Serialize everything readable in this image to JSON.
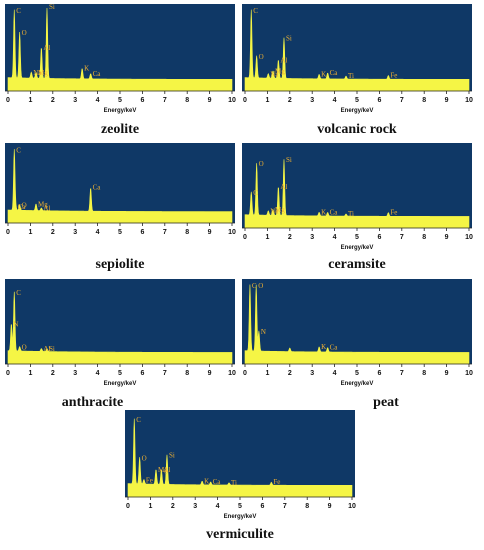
{
  "colors": {
    "background": "#0f3866",
    "spectrum": "#f5f545",
    "label": "#f0b030",
    "axis": "#222222"
  },
  "chart_data": [
    {
      "type": "line",
      "title": "zeolite",
      "xlabel": "Energy/keV",
      "xlim": [
        0,
        10
      ],
      "xticks": [
        "0",
        "1",
        "2",
        "3",
        "4",
        "5",
        "6",
        "7",
        "8",
        "9",
        "10"
      ],
      "peaks": [
        {
          "label": "C",
          "x": 0.28,
          "y": 0.92
        },
        {
          "label": "O",
          "x": 0.52,
          "y": 0.62
        },
        {
          "label": "Na",
          "x": 1.04,
          "y": 0.08
        },
        {
          "label": "Mg",
          "x": 1.25,
          "y": 0.08
        },
        {
          "label": "Al",
          "x": 1.49,
          "y": 0.42
        },
        {
          "label": "Si",
          "x": 1.74,
          "y": 0.97
        },
        {
          "label": "K",
          "x": 3.31,
          "y": 0.14
        },
        {
          "label": "Ca",
          "x": 3.69,
          "y": 0.07
        }
      ]
    },
    {
      "type": "line",
      "title": "volcanic rock",
      "xlabel": "Energy/keV",
      "xlim": [
        0,
        10
      ],
      "xticks": [
        "0",
        "1",
        "2",
        "3",
        "4",
        "5",
        "6",
        "7",
        "8",
        "9",
        "10"
      ],
      "peaks": [
        {
          "label": "C",
          "x": 0.28,
          "y": 0.92
        },
        {
          "label": "O",
          "x": 0.52,
          "y": 0.3
        },
        {
          "label": "Na",
          "x": 1.04,
          "y": 0.06
        },
        {
          "label": "Mg",
          "x": 1.25,
          "y": 0.1
        },
        {
          "label": "Al",
          "x": 1.49,
          "y": 0.25
        },
        {
          "label": "Si",
          "x": 1.74,
          "y": 0.55
        },
        {
          "label": "K",
          "x": 3.31,
          "y": 0.06
        },
        {
          "label": "Ca",
          "x": 3.69,
          "y": 0.08
        },
        {
          "label": "Ti",
          "x": 4.51,
          "y": 0.04
        },
        {
          "label": "Fe",
          "x": 6.4,
          "y": 0.05
        }
      ]
    },
    {
      "type": "line",
      "title": "sepiolite",
      "xlabel": "",
      "xlim": [
        0,
        10
      ],
      "xticks": [
        "0",
        "1",
        "2",
        "3",
        "4",
        "5",
        "6",
        "7",
        "8",
        "9",
        "10"
      ],
      "peaks": [
        {
          "label": "C",
          "x": 0.28,
          "y": 0.9
        },
        {
          "label": "Ca",
          "x": 0.34,
          "y": 0.06
        },
        {
          "label": "O",
          "x": 0.52,
          "y": 0.08
        },
        {
          "label": "Mg",
          "x": 1.25,
          "y": 0.1
        },
        {
          "label": "Al",
          "x": 1.49,
          "y": 0.04
        },
        {
          "label": "Ca",
          "x": 3.69,
          "y": 0.35
        }
      ]
    },
    {
      "type": "line",
      "title": "ceramsite",
      "xlabel": "Energy/keV",
      "xlim": [
        0,
        10
      ],
      "xticks": [
        "0",
        "1",
        "2",
        "3",
        "4",
        "5",
        "6",
        "7",
        "8",
        "9",
        "10"
      ],
      "peaks": [
        {
          "label": "C",
          "x": 0.28,
          "y": 0.32
        },
        {
          "label": "O",
          "x": 0.52,
          "y": 0.72
        },
        {
          "label": "Na",
          "x": 1.04,
          "y": 0.06
        },
        {
          "label": "Mg",
          "x": 1.25,
          "y": 0.08
        },
        {
          "label": "Al",
          "x": 1.49,
          "y": 0.4
        },
        {
          "label": "Si",
          "x": 1.74,
          "y": 0.78
        },
        {
          "label": "K",
          "x": 3.31,
          "y": 0.05
        },
        {
          "label": "Ca",
          "x": 3.69,
          "y": 0.05
        },
        {
          "label": "Ti",
          "x": 4.51,
          "y": 0.03
        },
        {
          "label": "Fe",
          "x": 6.4,
          "y": 0.05
        }
      ]
    },
    {
      "type": "line",
      "title": "anthracite",
      "xlabel": "Energy/keV",
      "xlim": [
        0,
        10
      ],
      "xticks": [
        "0",
        "1",
        "2",
        "3",
        "4",
        "5",
        "6",
        "7",
        "8",
        "9",
        "10"
      ],
      "peaks": [
        {
          "label": "N",
          "x": 0.15,
          "y": 0.38
        },
        {
          "label": "C",
          "x": 0.28,
          "y": 0.82
        },
        {
          "label": "O",
          "x": 0.52,
          "y": 0.06
        },
        {
          "label": "Al",
          "x": 1.49,
          "y": 0.04
        },
        {
          "label": "Si",
          "x": 1.74,
          "y": 0.04
        }
      ]
    },
    {
      "type": "line",
      "title": "peat",
      "xlabel": "Energy/keV",
      "xlim": [
        0,
        10
      ],
      "xticks": [
        "0",
        "1",
        "2",
        "3",
        "4",
        "5",
        "6",
        "7",
        "8",
        "9",
        "10"
      ],
      "peaks": [
        {
          "label": "C",
          "x": 0.22,
          "y": 0.92
        },
        {
          "label": "O",
          "x": 0.5,
          "y": 0.92
        },
        {
          "label": "N",
          "x": 0.62,
          "y": 0.28
        },
        {
          "label": "",
          "x": 2.0,
          "y": 0.05
        },
        {
          "label": "K",
          "x": 3.31,
          "y": 0.07
        },
        {
          "label": "Ca",
          "x": 3.69,
          "y": 0.06
        }
      ]
    },
    {
      "type": "line",
      "title": "vermiculite",
      "xlabel": "Energy/keV",
      "xlim": [
        0,
        10
      ],
      "xticks": [
        "0",
        "1",
        "2",
        "3",
        "4",
        "5",
        "6",
        "7",
        "8",
        "9",
        "10"
      ],
      "peaks": [
        {
          "label": "C",
          "x": 0.28,
          "y": 0.88
        },
        {
          "label": "O",
          "x": 0.52,
          "y": 0.36
        },
        {
          "label": "Fe",
          "x": 0.71,
          "y": 0.06
        },
        {
          "label": "Mg",
          "x": 1.25,
          "y": 0.2
        },
        {
          "label": "Al",
          "x": 1.49,
          "y": 0.2
        },
        {
          "label": "Si",
          "x": 1.74,
          "y": 0.4
        },
        {
          "label": "K",
          "x": 3.31,
          "y": 0.05
        },
        {
          "label": "Ca",
          "x": 3.69,
          "y": 0.04
        },
        {
          "label": "Ti",
          "x": 4.51,
          "y": 0.03
        },
        {
          "label": "Fe",
          "x": 6.4,
          "y": 0.04
        }
      ]
    }
  ]
}
